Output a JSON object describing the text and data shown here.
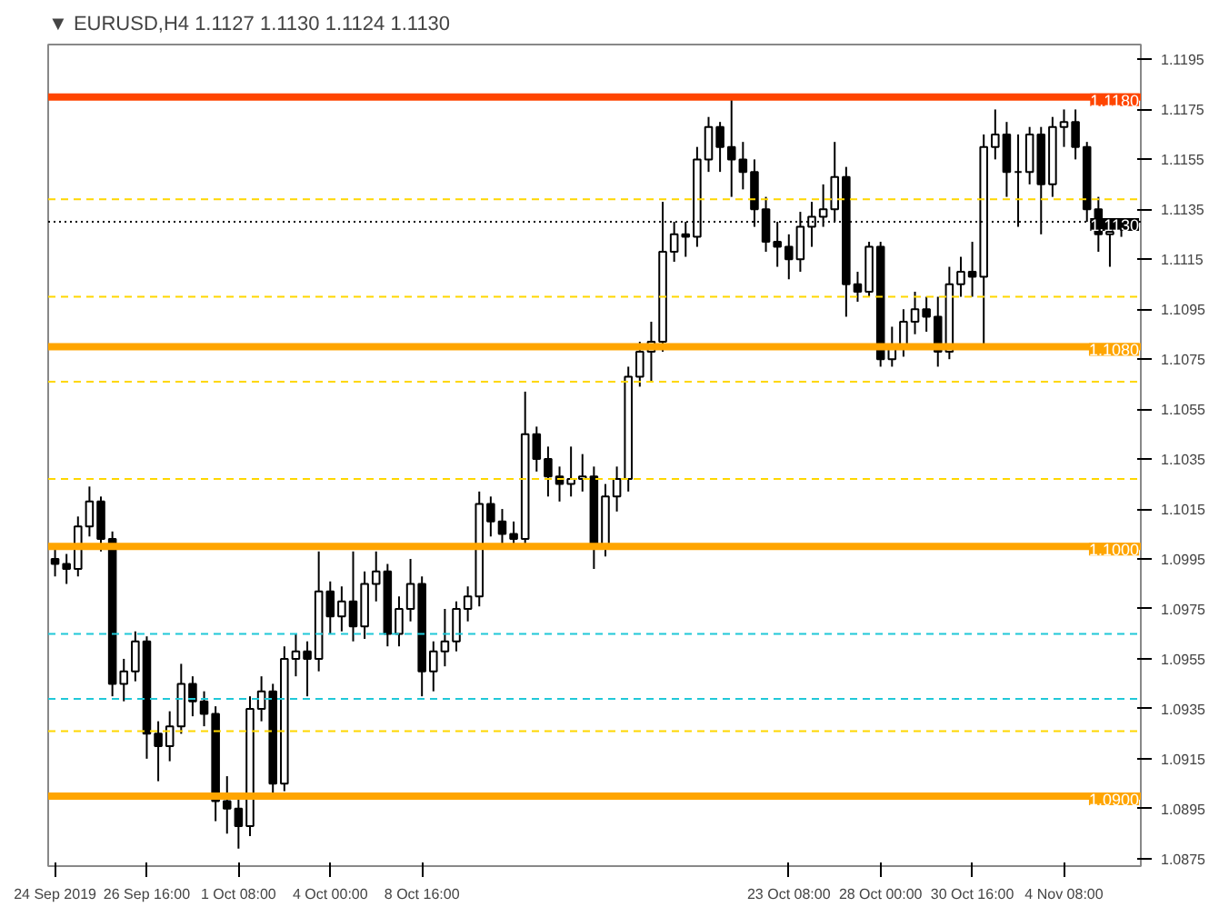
{
  "chart_data": {
    "type": "candlestick",
    "title": "▼ EURUSD,H4  1.1127 1.1130 1.1124 1.1130",
    "color": "#000000",
    "categories": [
      "24 Sep 2019",
      null,
      null,
      null,
      null,
      null,
      null,
      null,
      "26 Sep 16:00",
      null,
      null,
      null,
      null,
      null,
      null,
      null,
      "1 Oct 08:00",
      null,
      null,
      null,
      null,
      null,
      null,
      null,
      "4 Oct 00:00",
      null,
      null,
      null,
      null,
      null,
      null,
      null,
      "8 Oct 16:00",
      null,
      null,
      null,
      null,
      null,
      null,
      null,
      null,
      null,
      null,
      null,
      null,
      null,
      null,
      null,
      null,
      null,
      null,
      null,
      null,
      null,
      null,
      null,
      null,
      null,
      null,
      null,
      null,
      null,
      null,
      null,
      "23 Oct 08:00",
      null,
      null,
      null,
      null,
      null,
      null,
      null,
      "28 Oct 00:00",
      null,
      null,
      null,
      null,
      null,
      null,
      null,
      "30 Oct 16:00",
      null,
      null,
      null,
      null,
      null,
      null,
      null,
      "4 Nov 08:00",
      null,
      null,
      null,
      null,
      null
    ],
    "ohlc": [
      [
        1.0995,
        1.0999,
        1.0988,
        1.0993
      ],
      [
        1.0993,
        1.0997,
        1.0985,
        1.0991
      ],
      [
        1.0991,
        1.1012,
        1.0988,
        1.1008
      ],
      [
        1.1008,
        1.1024,
        1.1004,
        1.1018
      ],
      [
        1.1018,
        1.102,
        1.0998,
        1.1003
      ],
      [
        1.1003,
        1.1006,
        1.094,
        1.0945
      ],
      [
        1.0945,
        1.0955,
        1.0938,
        1.095
      ],
      [
        1.095,
        1.0966,
        1.0946,
        1.0962
      ],
      [
        1.0962,
        1.0964,
        1.0915,
        1.0925
      ],
      [
        1.0925,
        1.093,
        1.0906,
        1.092
      ],
      [
        1.092,
        1.0934,
        1.0914,
        1.0928
      ],
      [
        1.0928,
        1.0953,
        1.0925,
        1.0945
      ],
      [
        1.0945,
        1.0948,
        1.0932,
        1.0938
      ],
      [
        1.0938,
        1.0942,
        1.0928,
        1.0933
      ],
      [
        1.0933,
        1.0936,
        1.089,
        1.0898
      ],
      [
        1.0898,
        1.0908,
        1.0885,
        1.0895
      ],
      [
        1.0895,
        1.09,
        1.0879,
        1.0888
      ],
      [
        1.0888,
        1.094,
        1.0884,
        1.0935
      ],
      [
        1.0935,
        1.0948,
        1.093,
        1.0942
      ],
      [
        1.0942,
        1.0945,
        1.09,
        1.0905
      ],
      [
        1.0905,
        1.096,
        1.0902,
        1.0955
      ],
      [
        1.0955,
        1.0965,
        1.0948,
        1.0958
      ],
      [
        1.0958,
        1.0962,
        1.094,
        1.0955
      ],
      [
        1.0955,
        1.0998,
        1.095,
        1.0982
      ],
      [
        1.0982,
        1.0986,
        1.0965,
        1.0972
      ],
      [
        1.0972,
        1.0984,
        1.0966,
        1.0978
      ],
      [
        1.0978,
        1.0998,
        1.0962,
        1.0968
      ],
      [
        1.0968,
        1.099,
        1.0963,
        1.0985
      ],
      [
        1.0985,
        1.0998,
        1.0978,
        1.099
      ],
      [
        1.099,
        1.0993,
        1.096,
        1.0965
      ],
      [
        1.0965,
        1.098,
        1.096,
        1.0975
      ],
      [
        1.0975,
        1.0995,
        1.097,
        1.0985
      ],
      [
        1.0985,
        1.0988,
        1.094,
        1.095
      ],
      [
        1.095,
        1.0962,
        1.0942,
        1.0958
      ],
      [
        1.0958,
        1.0975,
        1.0952,
        1.0962
      ],
      [
        1.0962,
        1.0978,
        1.0958,
        1.0975
      ],
      [
        1.0975,
        1.0984,
        1.097,
        1.098
      ],
      [
        1.098,
        1.1022,
        1.0976,
        1.1017
      ],
      [
        1.1017,
        1.102,
        1.1004,
        1.101
      ],
      [
        1.101,
        1.1015,
        1.1,
        1.1005
      ],
      [
        1.1005,
        1.101,
        1.1,
        1.1003
      ],
      [
        1.1003,
        1.1062,
        1.1,
        1.1045
      ],
      [
        1.1045,
        1.1048,
        1.103,
        1.1035
      ],
      [
        1.1035,
        1.104,
        1.102,
        1.1028
      ],
      [
        1.1028,
        1.1032,
        1.1018,
        1.1025
      ],
      [
        1.1025,
        1.104,
        1.102,
        1.1027
      ],
      [
        1.1027,
        1.1037,
        1.1022,
        1.1028
      ],
      [
        1.1028,
        1.1032,
        1.0991,
        1.1
      ],
      [
        1.1,
        1.1025,
        1.0996,
        1.102
      ],
      [
        1.102,
        1.1032,
        1.1014,
        1.1027
      ],
      [
        1.1027,
        1.1072,
        1.1022,
        1.1068
      ],
      [
        1.1068,
        1.1082,
        1.1064,
        1.1078
      ],
      [
        1.1078,
        1.109,
        1.1066,
        1.1082
      ],
      [
        1.1082,
        1.1138,
        1.1078,
        1.1118
      ],
      [
        1.1118,
        1.113,
        1.1114,
        1.1125
      ],
      [
        1.1125,
        1.113,
        1.1116,
        1.1124
      ],
      [
        1.1124,
        1.116,
        1.112,
        1.1155
      ],
      [
        1.1155,
        1.1172,
        1.115,
        1.1168
      ],
      [
        1.1168,
        1.117,
        1.115,
        1.116
      ],
      [
        1.116,
        1.118,
        1.114,
        1.1155
      ],
      [
        1.1155,
        1.1162,
        1.1143,
        1.115
      ],
      [
        1.115,
        1.1155,
        1.1128,
        1.1135
      ],
      [
        1.1135,
        1.114,
        1.1118,
        1.1122
      ],
      [
        1.1122,
        1.113,
        1.1112,
        1.112
      ],
      [
        1.112,
        1.1125,
        1.1107,
        1.1115
      ],
      [
        1.1115,
        1.1134,
        1.111,
        1.1128
      ],
      [
        1.1128,
        1.1138,
        1.112,
        1.1132
      ],
      [
        1.1132,
        1.1145,
        1.1128,
        1.1135
      ],
      [
        1.1135,
        1.1162,
        1.113,
        1.1148
      ],
      [
        1.1148,
        1.1152,
        1.1092,
        1.1105
      ],
      [
        1.1105,
        1.111,
        1.1098,
        1.1102
      ],
      [
        1.1102,
        1.1122,
        1.11,
        1.112
      ],
      [
        1.112,
        1.1122,
        1.1072,
        1.1075
      ],
      [
        1.1075,
        1.1088,
        1.1072,
        1.108
      ],
      [
        1.108,
        1.1095,
        1.1076,
        1.109
      ],
      [
        1.109,
        1.1102,
        1.1085,
        1.1095
      ],
      [
        1.1095,
        1.11,
        1.1086,
        1.1092
      ],
      [
        1.1092,
        1.11,
        1.1072,
        1.1078
      ],
      [
        1.1078,
        1.1112,
        1.1075,
        1.1105
      ],
      [
        1.1105,
        1.1116,
        1.11,
        1.111
      ],
      [
        1.111,
        1.1122,
        1.11,
        1.1108
      ],
      [
        1.1108,
        1.1165,
        1.108,
        1.116
      ],
      [
        1.116,
        1.1175,
        1.1155,
        1.1165
      ],
      [
        1.1165,
        1.117,
        1.114,
        1.115
      ],
      [
        1.115,
        1.1165,
        1.1128,
        1.115
      ],
      [
        1.115,
        1.1168,
        1.1145,
        1.1165
      ],
      [
        1.1165,
        1.1168,
        1.1125,
        1.1145
      ],
      [
        1.1145,
        1.1172,
        1.114,
        1.1168
      ],
      [
        1.1168,
        1.1175,
        1.116,
        1.117
      ],
      [
        1.117,
        1.1175,
        1.1155,
        1.116
      ],
      [
        1.116,
        1.1162,
        1.113,
        1.1135
      ],
      [
        1.1135,
        1.114,
        1.1118,
        1.1125
      ],
      [
        1.1125,
        1.113,
        1.1112,
        1.1126
      ],
      [
        1.1127,
        1.113,
        1.1124,
        1.113
      ]
    ],
    "ylim": [
      1.0872,
      1.1201
    ],
    "yticks": [
      1.0875,
      1.0895,
      1.0915,
      1.0935,
      1.0955,
      1.0975,
      1.0995,
      1.1015,
      1.1035,
      1.1055,
      1.1075,
      1.1095,
      1.1115,
      1.1135,
      1.1155,
      1.1175,
      1.1195
    ],
    "ref_lines": [
      {
        "axis": "y",
        "value": 1.118,
        "label": "1.1180",
        "color": "#ff4500",
        "line_style": "solid"
      },
      {
        "axis": "y",
        "value": 1.108,
        "label": "1.1080",
        "color": "#ffa500",
        "line_style": "solid"
      },
      {
        "axis": "y",
        "value": 1.1,
        "label": "1.1000",
        "color": "#ffa500",
        "line_style": "solid"
      },
      {
        "axis": "y",
        "value": 1.09,
        "label": "1.0900",
        "color": "#ffa500",
        "line_style": "solid"
      },
      {
        "axis": "y",
        "value": 1.113,
        "label": "1.1130",
        "color": "#000000",
        "line_style": "dotted"
      },
      {
        "axis": "y",
        "value": 1.1139,
        "color": "#ffd700",
        "line_style": "dashed"
      },
      {
        "axis": "y",
        "value": 1.11,
        "color": "#ffd700",
        "line_style": "dashed"
      },
      {
        "axis": "y",
        "value": 1.1066,
        "color": "#ffd700",
        "line_style": "dashed"
      },
      {
        "axis": "y",
        "value": 1.1027,
        "color": "#ffd700",
        "line_style": "dashed"
      },
      {
        "axis": "y",
        "value": 1.0926,
        "color": "#ffd700",
        "line_style": "dashed"
      },
      {
        "axis": "y",
        "value": 1.0965,
        "color": "#20c8d8",
        "line_style": "dashed"
      },
      {
        "axis": "y",
        "value": 1.0939,
        "color": "#20c8d8",
        "line_style": "dashed"
      }
    ],
    "grid": false
  }
}
